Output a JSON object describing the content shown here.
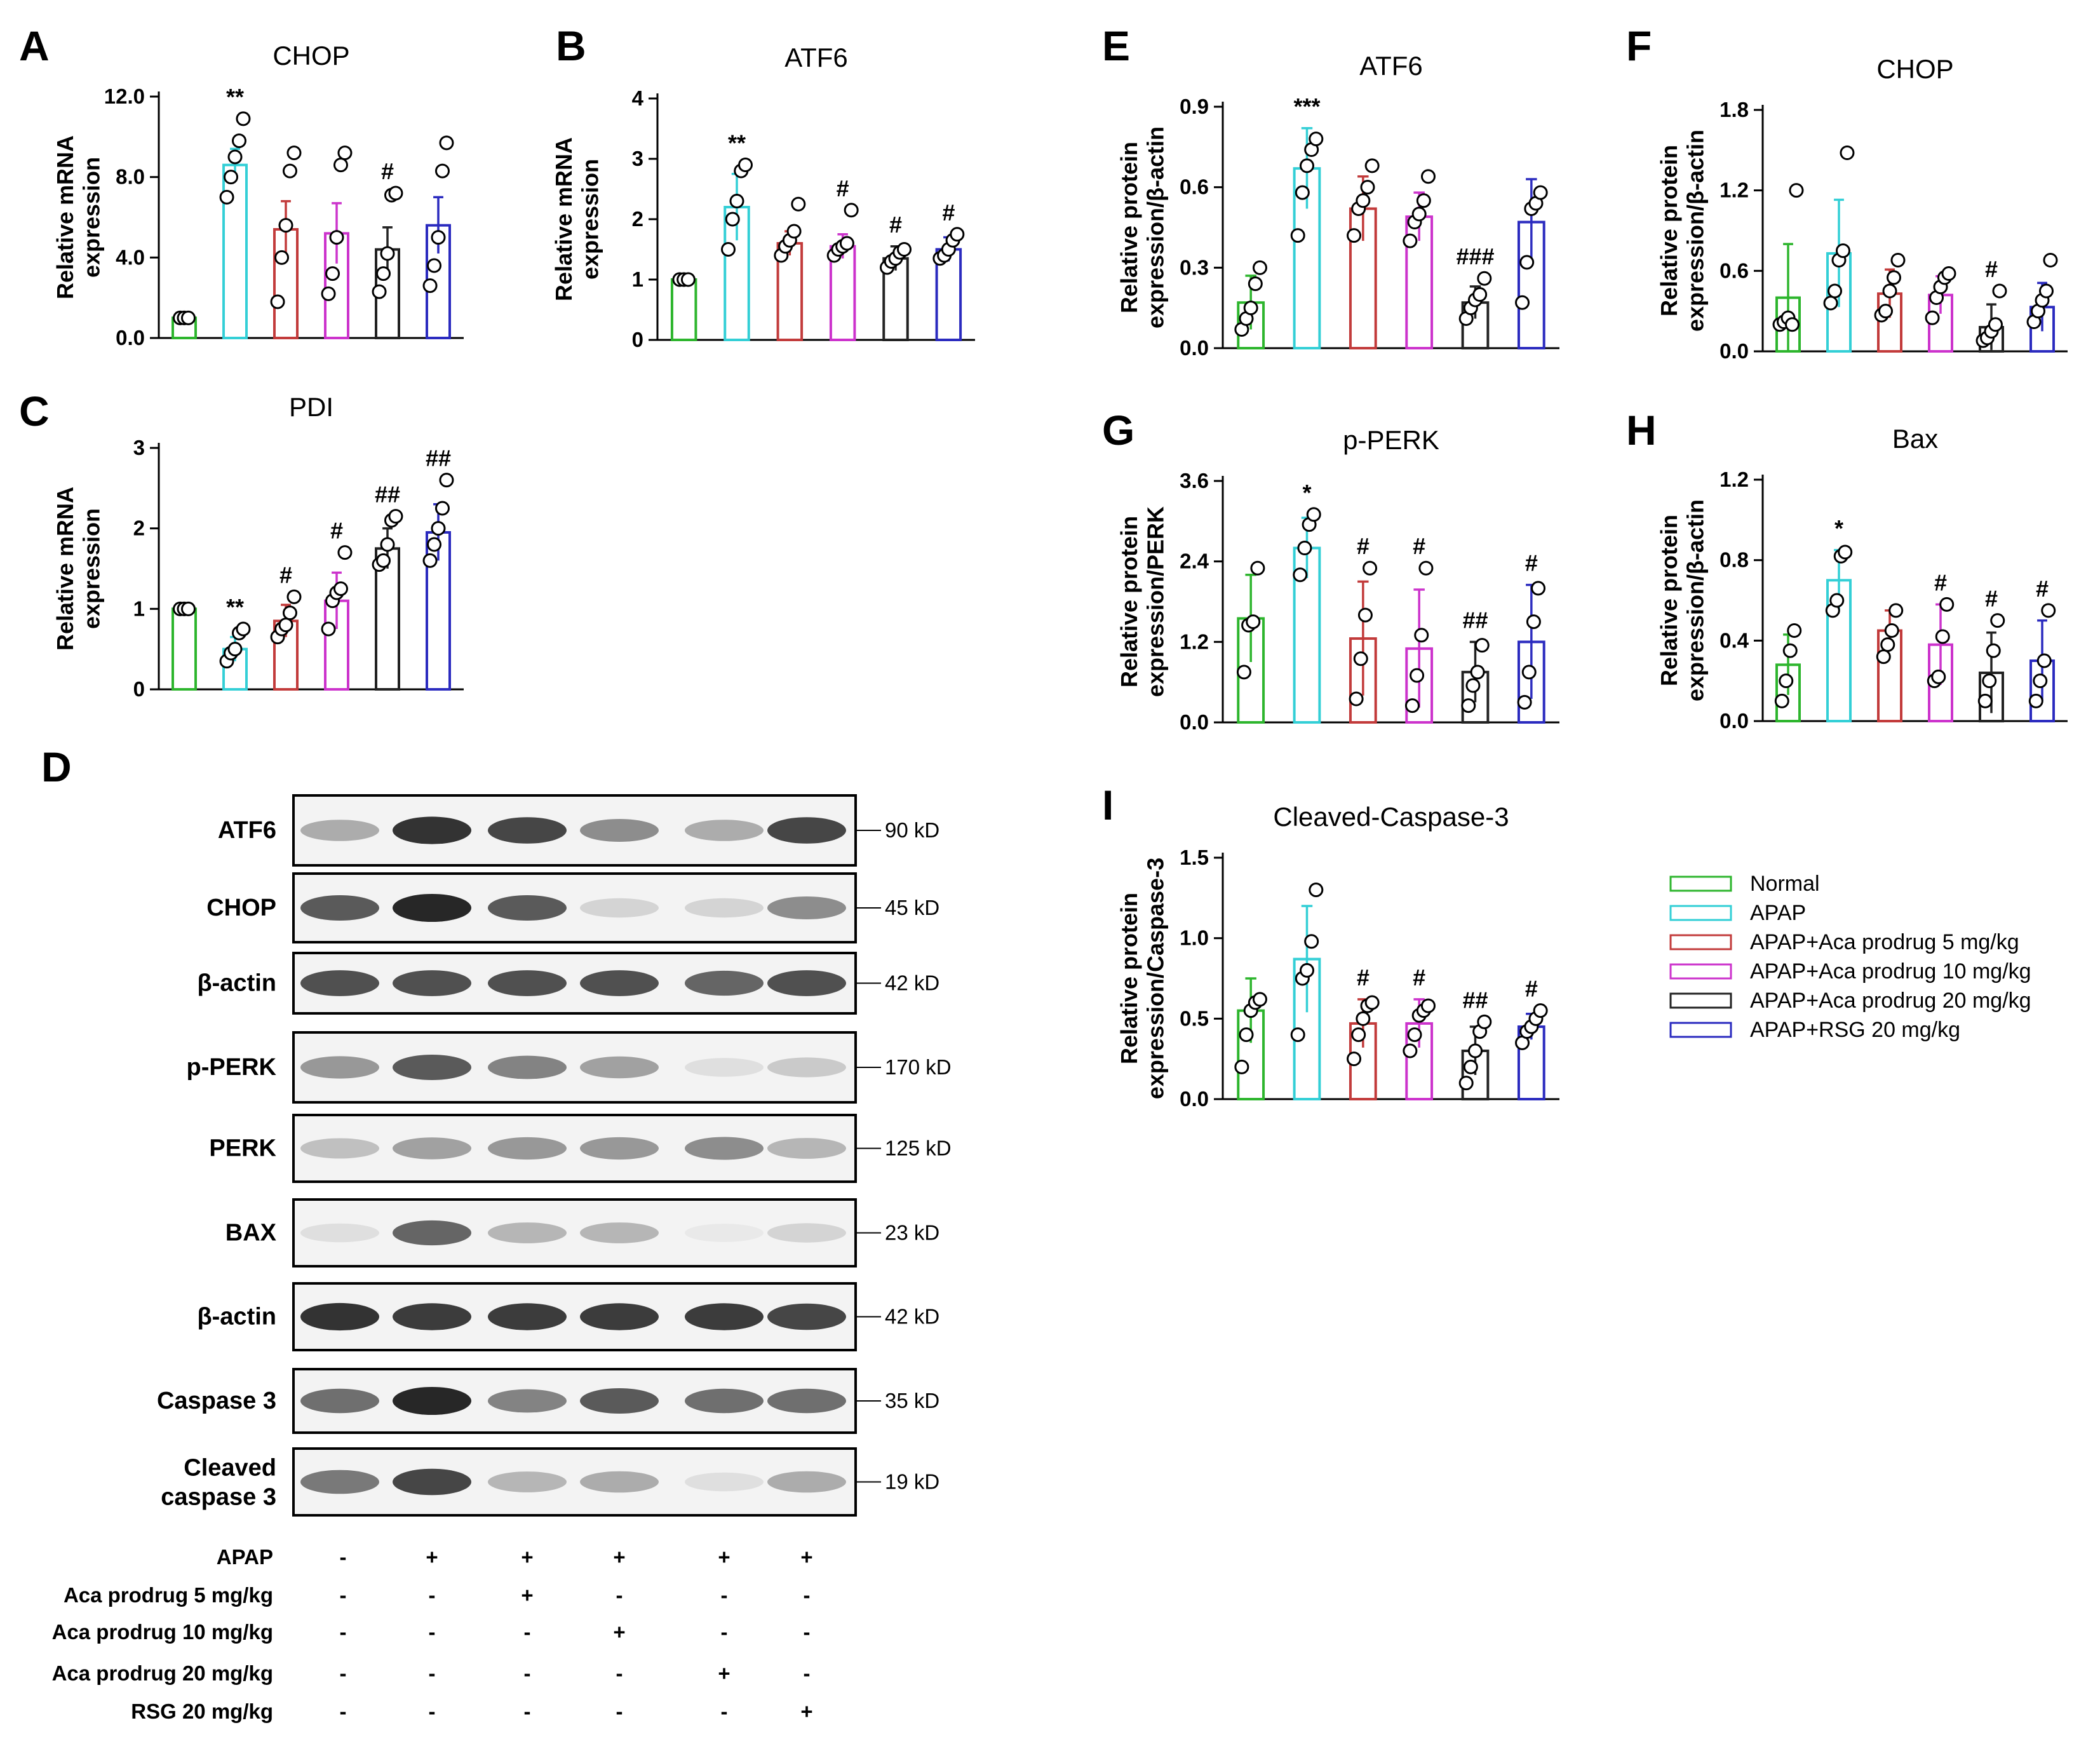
{
  "colors": {
    "series": [
      "#2db52d",
      "#33cfd6",
      "#c23b3b",
      "#cc33cc",
      "#222222",
      "#2b2bbf"
    ],
    "axis": "#000000"
  },
  "legend": {
    "entries": [
      "Normal",
      "APAP",
      "APAP+Aca prodrug 5 mg/kg",
      "APAP+Aca prodrug 10 mg/kg",
      "APAP+Aca prodrug 20 mg/kg",
      "APAP+RSG 20 mg/kg"
    ]
  },
  "chart_data": [
    {
      "id": "A",
      "type": "bar",
      "title": "CHOP",
      "ylabel": "Relative mRNA|expression",
      "ylim": [
        0,
        12
      ],
      "yticks": [
        "0.0",
        "4.0",
        "8.0",
        "12.0"
      ],
      "series_names": [
        "Normal",
        "APAP",
        "APAP+Aca prodrug 5 mg/kg",
        "APAP+Aca prodrug 10 mg/kg",
        "APAP+Aca prodrug 20 mg/kg",
        "APAP+RSG 20 mg/kg"
      ],
      "values": [
        1.0,
        8.6,
        5.4,
        5.2,
        4.4,
        5.6
      ],
      "errors": [
        0,
        0.8,
        1.4,
        1.5,
        1.1,
        1.4
      ],
      "points": [
        [
          1.0,
          1.0,
          1.0
        ],
        [
          7.0,
          8.0,
          9.0,
          9.8,
          10.9
        ],
        [
          1.8,
          4.0,
          5.6,
          8.3,
          9.2
        ],
        [
          2.2,
          3.2,
          5.0,
          8.6,
          9.2
        ],
        [
          2.3,
          3.2,
          4.2,
          7.1,
          7.2
        ],
        [
          2.6,
          3.6,
          5.0,
          8.3,
          9.7
        ]
      ],
      "significance": [
        "",
        "**",
        "",
        "",
        "#",
        ""
      ]
    },
    {
      "id": "B",
      "type": "bar",
      "title": "ATF6",
      "ylabel": "Relative mRNA|expression",
      "ylim": [
        0,
        4
      ],
      "yticks": [
        "0",
        "1",
        "2",
        "3",
        "4"
      ],
      "series_names": [
        "Normal",
        "APAP",
        "APAP+Aca prodrug 5 mg/kg",
        "APAP+Aca prodrug 10 mg/kg",
        "APAP+Aca prodrug 20 mg/kg",
        "APAP+RSG 20 mg/kg"
      ],
      "values": [
        1.0,
        2.2,
        1.6,
        1.55,
        1.35,
        1.5
      ],
      "errors": [
        0,
        0.55,
        0.2,
        0.2,
        0.2,
        0.2
      ],
      "points": [
        [
          1.0,
          1.0,
          1.0
        ],
        [
          1.5,
          2.0,
          2.3,
          2.8,
          2.9
        ],
        [
          1.4,
          1.55,
          1.65,
          1.8,
          2.25
        ],
        [
          1.4,
          1.5,
          1.55,
          1.6,
          2.15
        ],
        [
          1.2,
          1.3,
          1.35,
          1.45,
          1.5
        ],
        [
          1.35,
          1.4,
          1.5,
          1.65,
          1.75
        ]
      ],
      "significance": [
        "",
        "**",
        "",
        "#",
        "#",
        "#"
      ]
    },
    {
      "id": "C",
      "type": "bar",
      "title": "PDI",
      "ylabel": "Relative mRNA|expression",
      "ylim": [
        0,
        3
      ],
      "yticks": [
        "0",
        "1",
        "2",
        "3"
      ],
      "series_names": [
        "Normal",
        "APAP",
        "APAP+Aca prodrug 5 mg/kg",
        "APAP+Aca prodrug 10 mg/kg",
        "APAP+Aca prodrug 20 mg/kg",
        "APAP+RSG 20 mg/kg"
      ],
      "values": [
        1.0,
        0.5,
        0.85,
        1.1,
        1.75,
        1.95
      ],
      "errors": [
        0,
        0.15,
        0.2,
        0.35,
        0.25,
        0.35
      ],
      "points": [
        [
          1.0,
          1.0,
          1.0
        ],
        [
          0.35,
          0.45,
          0.5,
          0.7,
          0.75
        ],
        [
          0.65,
          0.75,
          0.8,
          0.95,
          1.15
        ],
        [
          0.75,
          1.1,
          1.2,
          1.25,
          1.7
        ],
        [
          1.55,
          1.6,
          1.8,
          2.1,
          2.15
        ],
        [
          1.6,
          1.8,
          2.0,
          2.25,
          2.6
        ]
      ],
      "significance": [
        "",
        "**",
        "#",
        "#",
        "##",
        "##"
      ]
    },
    {
      "id": "E",
      "type": "bar",
      "title": "ATF6",
      "ylabel": "Relative protein|expression/β-actin",
      "ylim": [
        0,
        0.9
      ],
      "yticks": [
        "0.0",
        "0.3",
        "0.6",
        "0.9"
      ],
      "series_names": [
        "Normal",
        "APAP",
        "APAP+Aca prodrug 5 mg/kg",
        "APAP+Aca prodrug 10 mg/kg",
        "APAP+Aca prodrug 20 mg/kg",
        "APAP+RSG 20 mg/kg"
      ],
      "values": [
        0.17,
        0.67,
        0.52,
        0.49,
        0.17,
        0.47
      ],
      "errors": [
        0.1,
        0.15,
        0.12,
        0.09,
        0.06,
        0.16
      ],
      "points": [
        [
          0.07,
          0.11,
          0.15,
          0.24,
          0.3
        ],
        [
          0.42,
          0.58,
          0.68,
          0.74,
          0.78
        ],
        [
          0.42,
          0.52,
          0.55,
          0.6,
          0.68
        ],
        [
          0.4,
          0.47,
          0.5,
          0.55,
          0.64
        ],
        [
          0.11,
          0.15,
          0.18,
          0.2,
          0.26
        ],
        [
          0.17,
          0.32,
          0.52,
          0.54,
          0.58
        ]
      ],
      "significance": [
        "",
        "***",
        "",
        "",
        "###",
        ""
      ]
    },
    {
      "id": "F",
      "type": "bar",
      "title": "CHOP",
      "ylabel": "Relative protein|expression/β-actin",
      "ylim": [
        0,
        1.8
      ],
      "yticks": [
        "0.0",
        "0.6",
        "1.2",
        "1.8"
      ],
      "series_names": [
        "Normal",
        "APAP",
        "APAP+Aca prodrug 5 mg/kg",
        "APAP+Aca prodrug 10 mg/kg",
        "APAP+Aca prodrug 20 mg/kg",
        "APAP+RSG 20 mg/kg"
      ],
      "values": [
        0.4,
        0.73,
        0.43,
        0.42,
        0.18,
        0.33
      ],
      "errors": [
        0.4,
        0.4,
        0.18,
        0.14,
        0.17,
        0.18
      ],
      "points": [
        [
          0.2,
          0.22,
          0.25,
          0.2,
          1.2
        ],
        [
          0.36,
          0.45,
          0.68,
          0.75,
          1.48
        ],
        [
          0.27,
          0.3,
          0.45,
          0.55,
          0.68
        ],
        [
          0.25,
          0.4,
          0.48,
          0.55,
          0.58
        ],
        [
          0.08,
          0.1,
          0.15,
          0.2,
          0.45
        ],
        [
          0.22,
          0.3,
          0.38,
          0.45,
          0.68
        ]
      ],
      "significance": [
        "",
        "",
        "",
        "",
        "#",
        ""
      ]
    },
    {
      "id": "G",
      "type": "bar",
      "title": "p-PERK",
      "ylabel": "Relative protein|expression/PERK",
      "ylim": [
        0,
        3.6
      ],
      "yticks": [
        "0.0",
        "1.2",
        "2.4",
        "3.6"
      ],
      "series_names": [
        "Normal",
        "APAP",
        "APAP+Aca prodrug 5 mg/kg",
        "APAP+Aca prodrug 10 mg/kg",
        "APAP+Aca prodrug 20 mg/kg",
        "APAP+RSG 20 mg/kg"
      ],
      "values": [
        1.55,
        2.6,
        1.25,
        1.1,
        0.75,
        1.2
      ],
      "errors": [
        0.65,
        0.45,
        0.85,
        0.88,
        0.45,
        0.85
      ],
      "points": [
        [
          0.75,
          1.45,
          1.5,
          2.3
        ],
        [
          2.2,
          2.6,
          2.95,
          3.1
        ],
        [
          0.35,
          0.95,
          1.6,
          2.3
        ],
        [
          0.25,
          0.7,
          1.3,
          2.3
        ],
        [
          0.25,
          0.55,
          0.75,
          1.15
        ],
        [
          0.3,
          0.75,
          1.5,
          2.0
        ]
      ],
      "significance": [
        "",
        "*",
        "#",
        "#",
        "##",
        "#"
      ]
    },
    {
      "id": "H",
      "type": "bar",
      "title": "Bax",
      "ylabel": "Relative protein|expression/β-actin",
      "ylim": [
        0,
        1.2
      ],
      "yticks": [
        "0.0",
        "0.4",
        "0.8",
        "1.2"
      ],
      "series_names": [
        "Normal",
        "APAP",
        "APAP+Aca prodrug 5 mg/kg",
        "APAP+Aca prodrug 10 mg/kg",
        "APAP+Aca prodrug 20 mg/kg",
        "APAP+RSG 20 mg/kg"
      ],
      "values": [
        0.28,
        0.7,
        0.45,
        0.38,
        0.24,
        0.3
      ],
      "errors": [
        0.15,
        0.15,
        0.1,
        0.2,
        0.2,
        0.2
      ],
      "points": [
        [
          0.1,
          0.2,
          0.35,
          0.45
        ],
        [
          0.55,
          0.6,
          0.82,
          0.84
        ],
        [
          0.32,
          0.38,
          0.45,
          0.55
        ],
        [
          0.2,
          0.22,
          0.42,
          0.58
        ],
        [
          0.1,
          0.2,
          0.35,
          0.5
        ],
        [
          0.1,
          0.2,
          0.3,
          0.55
        ]
      ],
      "significance": [
        "",
        "*",
        "",
        "#",
        "#",
        "#"
      ]
    },
    {
      "id": "I",
      "type": "bar",
      "title": "Cleaved-Caspase-3",
      "ylabel": "Relative protein|expression/Caspase-3",
      "ylim": [
        0,
        1.5
      ],
      "yticks": [
        "0.0",
        "0.5",
        "1.0",
        "1.5"
      ],
      "series_names": [
        "Normal",
        "APAP",
        "APAP+Aca prodrug 5 mg/kg",
        "APAP+Aca prodrug 10 mg/kg",
        "APAP+Aca prodrug 20 mg/kg",
        "APAP+RSG 20 mg/kg"
      ],
      "values": [
        0.55,
        0.87,
        0.47,
        0.47,
        0.3,
        0.45
      ],
      "errors": [
        0.2,
        0.33,
        0.15,
        0.15,
        0.15,
        0.08
      ],
      "points": [
        [
          0.2,
          0.4,
          0.55,
          0.6,
          0.62
        ],
        [
          0.4,
          0.75,
          0.8,
          0.98,
          1.3
        ],
        [
          0.25,
          0.4,
          0.5,
          0.58,
          0.6
        ],
        [
          0.3,
          0.4,
          0.52,
          0.55,
          0.58
        ],
        [
          0.1,
          0.2,
          0.3,
          0.42,
          0.48
        ],
        [
          0.35,
          0.42,
          0.45,
          0.5,
          0.55
        ]
      ],
      "significance": [
        "",
        "",
        "#",
        "#",
        "##",
        "#"
      ]
    }
  ],
  "blot": {
    "panel_letter": "D",
    "rows": [
      {
        "label": "ATF6",
        "kd": "90 kD"
      },
      {
        "label": "CHOP",
        "kd": "45 kD"
      },
      {
        "label": "β-actin",
        "kd": "42 kD"
      },
      {
        "label": "p-PERK",
        "kd": "170 kD"
      },
      {
        "label": "PERK",
        "kd": "125 kD"
      },
      {
        "label": "BAX",
        "kd": "23 kD"
      },
      {
        "label": "β-actin",
        "kd": "42 kD"
      },
      {
        "label": "Caspase 3",
        "kd": "35 kD"
      },
      {
        "label": "Cleaved|caspase 3",
        "kd": "19 kD"
      }
    ],
    "treatments": [
      {
        "label": "APAP",
        "signs": [
          "-",
          "+",
          "+",
          "+",
          "+",
          "+"
        ]
      },
      {
        "label": "Aca prodrug 5 mg/kg",
        "signs": [
          "-",
          "-",
          "+",
          "-",
          "-",
          "-"
        ]
      },
      {
        "label": "Aca prodrug 10 mg/kg",
        "signs": [
          "-",
          "-",
          "-",
          "+",
          "-",
          "-"
        ]
      },
      {
        "label": "Aca prodrug 20 mg/kg",
        "signs": [
          "-",
          "-",
          "-",
          "-",
          "+",
          "-"
        ]
      },
      {
        "label": "RSG 20 mg/kg",
        "signs": [
          "-",
          "-",
          "-",
          "-",
          "-",
          "+"
        ]
      }
    ]
  }
}
